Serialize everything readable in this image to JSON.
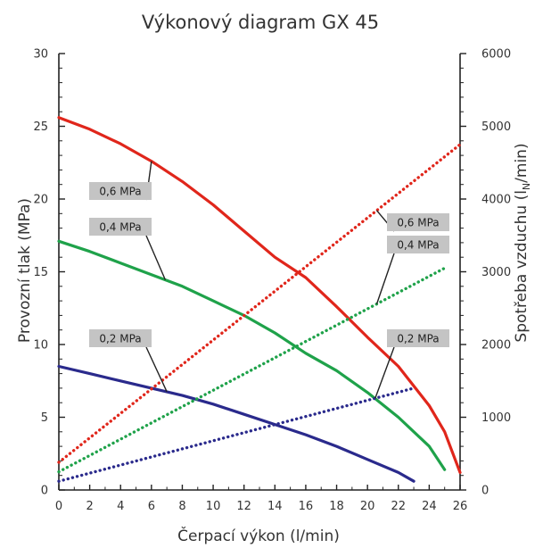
{
  "chart_data": {
    "type": "line",
    "title": "Výkonový diagram GX 45",
    "xlabel": "Čerpací výkon (l/min)",
    "ylabel_left": "Provozní tlak (MPa)",
    "ylabel_right_prefix": "Spotřeba vzduchu (l",
    "ylabel_right_subscript": "N",
    "ylabel_right_suffix": "/min)",
    "xlim": [
      0,
      26
    ],
    "ylim_left": [
      0,
      30
    ],
    "ylim_right": [
      0,
      6000
    ],
    "x_ticks": [
      "0",
      "2",
      "4",
      "6",
      "8",
      "10",
      "12",
      "14",
      "16",
      "18",
      "20",
      "22",
      "24",
      "26"
    ],
    "y_ticks_left": [
      "0",
      "5",
      "10",
      "15",
      "20",
      "25",
      "30"
    ],
    "y_ticks_right": [
      "0",
      "1000",
      "2000",
      "3000",
      "4000",
      "5000",
      "6000"
    ],
    "grid": false,
    "colors": {
      "0,6 MPa": "#e0261b",
      "0,4 MPa": "#1fa24a",
      "0,2 MPa": "#2a2a8c"
    },
    "series": [
      {
        "name": "0,6 MPa",
        "kind": "pressure",
        "axis": "left",
        "color": "#e0261b",
        "x": [
          0,
          2,
          4,
          6,
          8,
          10,
          12,
          14,
          16,
          18,
          20,
          22,
          24,
          25,
          26
        ],
        "y": [
          25.6,
          24.8,
          23.8,
          22.6,
          21.2,
          19.6,
          17.8,
          16.0,
          14.6,
          12.6,
          10.5,
          8.5,
          5.8,
          4.0,
          1.2
        ]
      },
      {
        "name": "0,4 MPa",
        "kind": "pressure",
        "axis": "left",
        "color": "#1fa24a",
        "x": [
          0,
          2,
          4,
          6,
          8,
          10,
          12,
          14,
          16,
          18,
          20,
          22,
          23,
          24,
          25
        ],
        "y": [
          17.1,
          16.4,
          15.6,
          14.8,
          14.0,
          13.0,
          12.0,
          10.8,
          9.4,
          8.2,
          6.7,
          5.0,
          4.0,
          3.0,
          1.4
        ]
      },
      {
        "name": "0,2 MPa",
        "kind": "pressure",
        "axis": "left",
        "color": "#2a2a8c",
        "x": [
          0,
          2,
          4,
          6,
          8,
          10,
          12,
          14,
          16,
          18,
          20,
          22,
          23
        ],
        "y": [
          8.5,
          8.0,
          7.5,
          7.0,
          6.5,
          5.9,
          5.2,
          4.5,
          3.8,
          3.0,
          2.1,
          1.2,
          0.6
        ]
      },
      {
        "name": "0,6 MPa",
        "kind": "air",
        "axis": "right",
        "color": "#e0261b",
        "x": [
          0,
          26
        ],
        "y": [
          380,
          4750
        ]
      },
      {
        "name": "0,4 MPa",
        "kind": "air",
        "axis": "right",
        "color": "#1fa24a",
        "x": [
          0,
          25
        ],
        "y": [
          250,
          3050
        ]
      },
      {
        "name": "0,2 MPa",
        "kind": "air",
        "axis": "right",
        "color": "#2a2a8c",
        "x": [
          0,
          23
        ],
        "y": [
          120,
          1400
        ]
      }
    ],
    "annotations": {
      "left": [
        {
          "text": "0,6 MPa",
          "series": 0,
          "at_x": 6.0
        },
        {
          "text": "0,4 MPa",
          "series": 1,
          "at_x": 6.9
        },
        {
          "text": "0,2 MPa",
          "series": 2,
          "at_x": 7.0
        }
      ],
      "right": [
        {
          "text": "0,6 MPa",
          "series": 3,
          "at_x": 20.6
        },
        {
          "text": "0,4 MPa",
          "series": 4,
          "at_x": 20.6
        },
        {
          "text": "0,2 MPa",
          "series": 5,
          "at_x": 20.5
        }
      ]
    }
  }
}
